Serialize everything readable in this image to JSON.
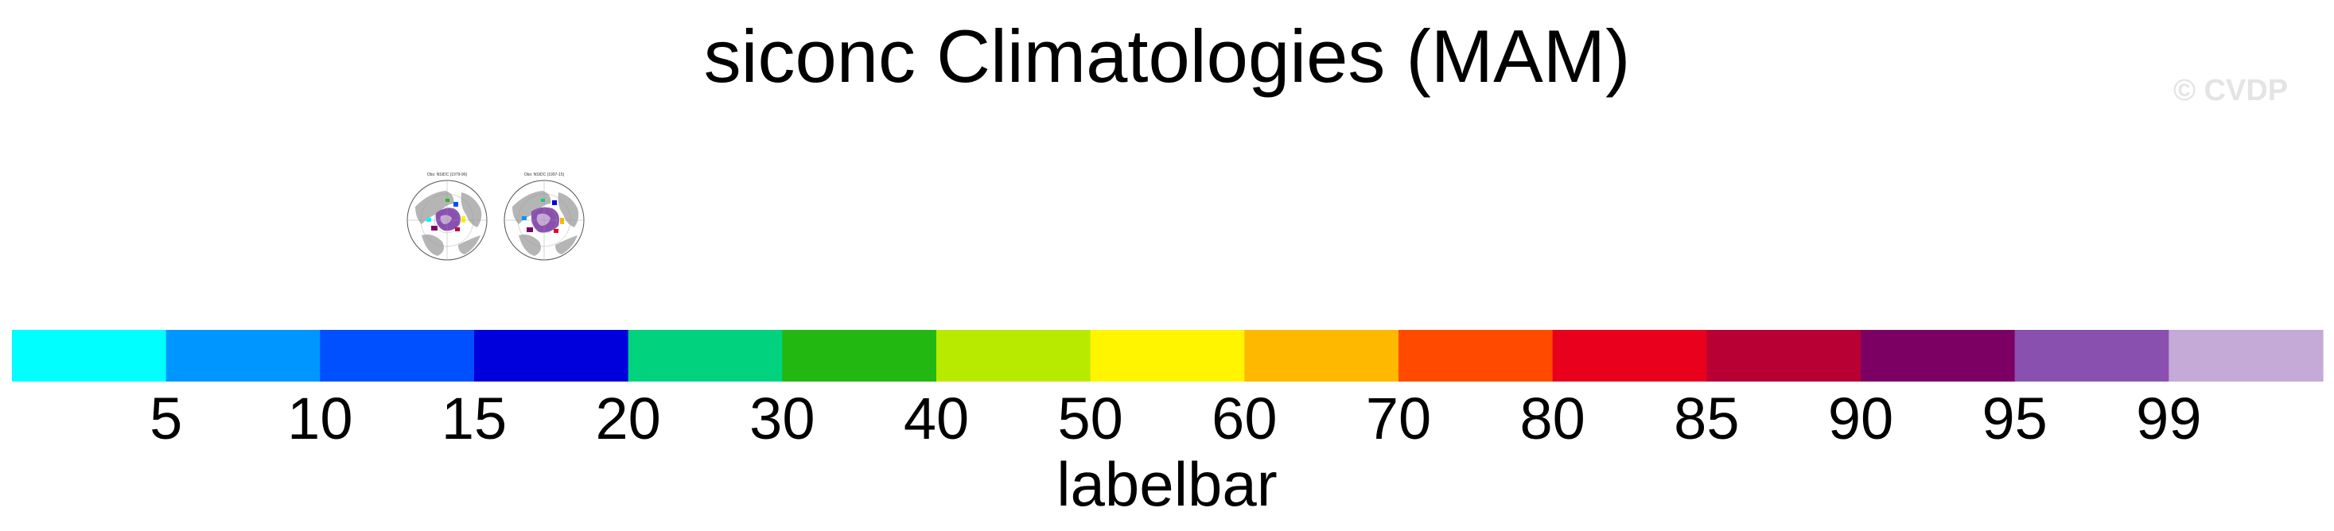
{
  "page": {
    "title": "siconc Climatologies (MAM)",
    "watermark": "© CVDP"
  },
  "panels": [
    {
      "id": "panel-1",
      "caption": "Obs: NSIDC (1979-96)"
    },
    {
      "id": "panel-2",
      "caption": "Obs: NSIDC (1997-15)"
    }
  ],
  "chart_data": {
    "type": "colorbar",
    "title": "labelbar",
    "boundaries": [
      5,
      10,
      15,
      20,
      30,
      40,
      50,
      60,
      70,
      80,
      85,
      90,
      95,
      99
    ],
    "tick_labels": [
      "5",
      "10",
      "15",
      "20",
      "30",
      "40",
      "50",
      "60",
      "70",
      "80",
      "85",
      "90",
      "95",
      "99"
    ],
    "colors": [
      "#00ffff",
      "#0096ff",
      "#0050ff",
      "#0000dc",
      "#00d27d",
      "#22b811",
      "#b8ea00",
      "#fff500",
      "#ffb800",
      "#ff4a00",
      "#e8001c",
      "#b80034",
      "#7c0064",
      "#8a50af",
      "#c5a9d6"
    ]
  }
}
